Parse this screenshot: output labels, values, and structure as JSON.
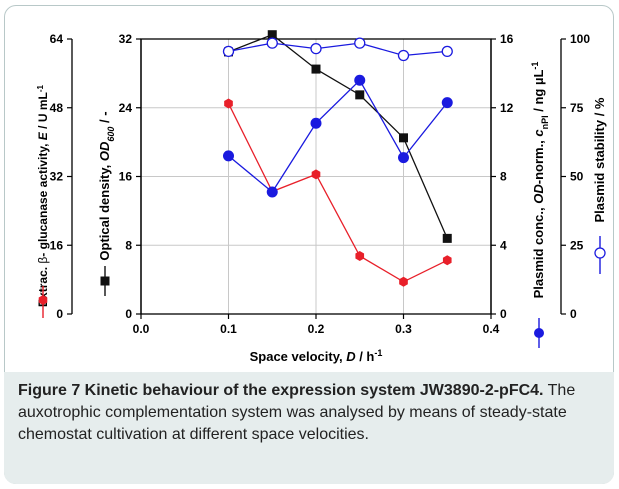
{
  "chart_data": {
    "type": "line",
    "xlabel_prefix": "Space velocity, ",
    "xlabel_var": "D",
    "xlabel_unit": " / h",
    "xlabel_exp": "-1",
    "xlim": [
      0.0,
      0.4
    ],
    "x_ticks": [
      "0.0",
      "0.1",
      "0.2",
      "0.3",
      "0.4"
    ],
    "x": [
      0.1,
      0.15,
      0.2,
      0.25,
      0.3,
      0.35
    ],
    "axes": {
      "left_outer": {
        "label_pre": "Extrac. ",
        "label_beta": "β",
        "label_mid": "- glucanase activity, ",
        "label_var": "E",
        "label_unit": " / U mL",
        "label_exp": "-1",
        "ticks": [
          "0",
          "16",
          "32",
          "48",
          "64"
        ],
        "ylim": [
          0,
          64
        ]
      },
      "left_inner": {
        "label_pre": "Optical density, ",
        "label_var": "OD",
        "label_sub": "600",
        "label_unit": " / -",
        "ticks": [
          "0",
          "8",
          "16",
          "24",
          "32"
        ],
        "ylim": [
          0,
          32
        ]
      },
      "right_inner": {
        "label_pre": "Plasmid conc., ",
        "label_var1": "OD",
        "label_mid": "-norm., ",
        "label_var2": "c",
        "label_sub": "nPl",
        "label_unit": " / ng µL",
        "label_exp": "-1",
        "ticks": [
          "0",
          "4",
          "8",
          "12",
          "16"
        ],
        "ylim": [
          0,
          16
        ]
      },
      "right_outer": {
        "label_pre": "Plasmid stability / %",
        "ticks": [
          "0",
          "25",
          "50",
          "75",
          "100"
        ],
        "ylim": [
          0,
          100
        ]
      }
    },
    "series": [
      {
        "axis": "left_outer",
        "color": "#e8202a",
        "marker": "hexagon",
        "values": [
          49,
          28.5,
          32.5,
          13.5,
          7.5,
          12.5
        ]
      },
      {
        "axis": "left_inner",
        "color": "#111111",
        "marker": "square",
        "values": [
          30.5,
          32.5,
          28.5,
          25.5,
          20.5,
          8.8
        ]
      },
      {
        "axis": "right_inner",
        "color": "#1a1adf",
        "marker": "circle",
        "values": [
          9.2,
          7.1,
          11.1,
          13.6,
          9.1,
          12.3
        ]
      },
      {
        "axis": "right_outer",
        "color": "#1a1adf",
        "marker": "open-circle",
        "values": [
          95.5,
          98.5,
          96.5,
          98.5,
          94,
          95.5
        ]
      }
    ]
  },
  "caption": {
    "bold": "Figure 7 Kinetic behaviour of the expression system JW3890-2-pFC4.",
    "text": " The auxotrophic complementation system was analysed by means of steady-state chemostat cultivation at different space velocities."
  }
}
